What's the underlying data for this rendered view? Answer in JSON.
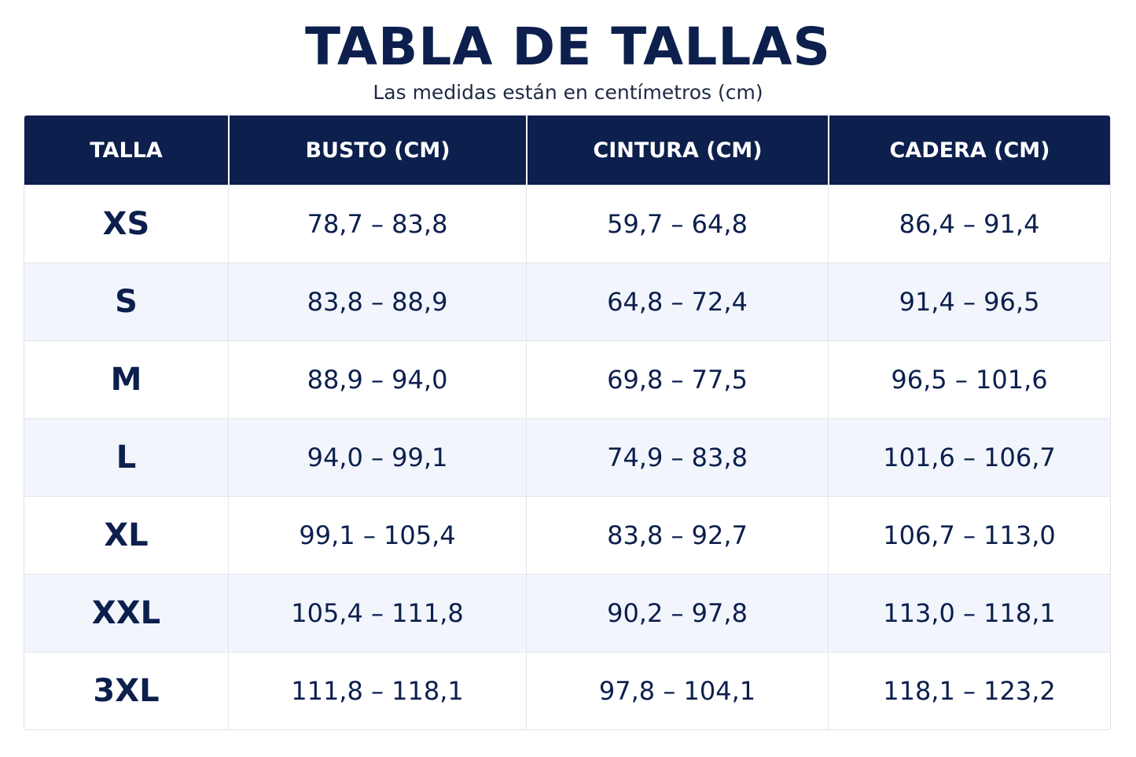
{
  "title": "TABLA DE TALLAS",
  "subtitle": "Las medidas están en centímetros (cm)",
  "table": {
    "headers": [
      "TALLA",
      "BUSTO (CM)",
      "CINTURA (CM)",
      "CADERA (CM)"
    ],
    "rows": [
      [
        "XS",
        "78,7 – 83,8",
        "59,7 – 64,8",
        "86,4 – 91,4"
      ],
      [
        "S",
        "83,8 – 88,9",
        "64,8 – 72,4",
        "91,4 – 96,5"
      ],
      [
        "M",
        "88,9 – 94,0",
        "69,8 – 77,5",
        "96,5 – 101,6"
      ],
      [
        "L",
        "94,0 – 99,1",
        "74,9 – 83,8",
        "101,6 – 106,7"
      ],
      [
        "XL",
        "99,1 – 105,4",
        "83,8 – 92,7",
        "106,7 – 113,0"
      ],
      [
        "XXL",
        "105,4 – 111,8",
        "90,2 – 97,8",
        "113,0 – 118,1"
      ],
      [
        "3XL",
        "111,8 – 118,1",
        "97,8 – 104,1",
        "118,1 – 123,2"
      ]
    ]
  },
  "colors": {
    "header_background": "#0c1f4d",
    "text": "#0c1f4d",
    "alt_row_background": "#f2f5fb"
  }
}
